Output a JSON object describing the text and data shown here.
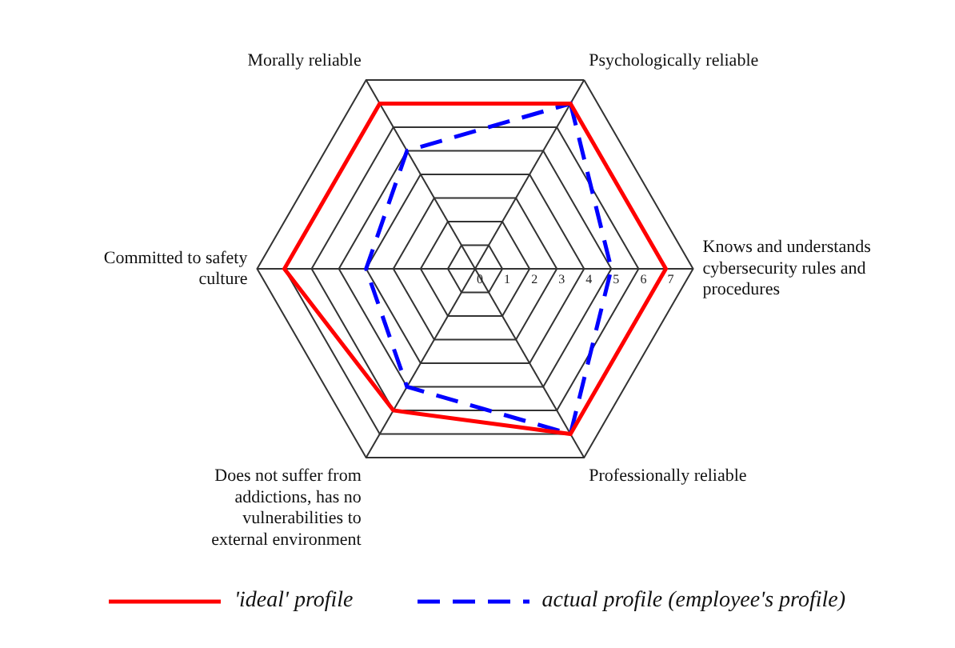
{
  "chart_data": {
    "type": "radar",
    "categories": [
      "Psychologically reliable",
      "Knows and understands cybersecurity rules and procedures",
      "Professionally reliable",
      "Does not suffer from addictions, has no vulnerabilities to external environment",
      "Committed to safety culture",
      "Morally reliable"
    ],
    "series": [
      {
        "name": "'ideal' profile",
        "color": "#ff0000",
        "values": [
          7,
          7,
          7,
          6,
          7,
          7
        ],
        "line_style": "solid"
      },
      {
        "name": "actual profile (employee's profile)",
        "color": "#0000ff",
        "values": [
          7,
          5,
          7,
          5,
          4,
          5
        ],
        "line_style": "dashed"
      }
    ],
    "ylim": [
      0,
      8
    ],
    "yticks": [
      0,
      1,
      2,
      3,
      4,
      5,
      6,
      7
    ],
    "legend": "bottom",
    "marker": "none",
    "grid": true
  }
}
